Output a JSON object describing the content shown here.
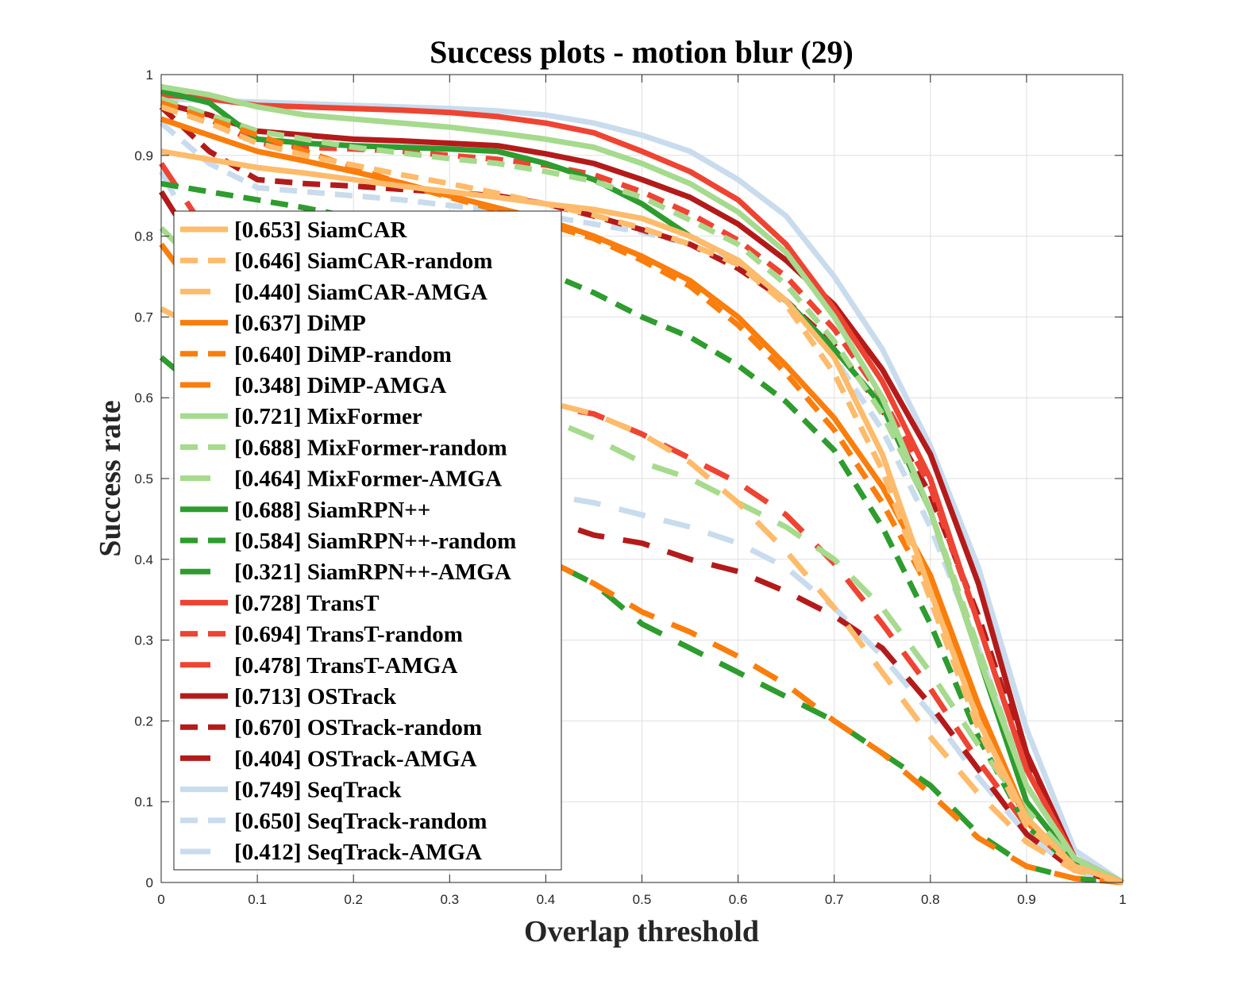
{
  "chart_data": {
    "type": "line",
    "title": "Success plots - motion blur (29)",
    "xlabel": "Overlap threshold",
    "ylabel": "Success rate",
    "xlim": [
      0,
      1
    ],
    "ylim": [
      0,
      1
    ],
    "grid": true,
    "legend_position": "left",
    "x_ticks": [
      "0",
      "0.1",
      "0.2",
      "0.3",
      "0.4",
      "0.5",
      "0.6",
      "0.7",
      "0.8",
      "0.9",
      "1"
    ],
    "y_ticks": [
      "0",
      "0.1",
      "0.2",
      "0.3",
      "0.4",
      "0.5",
      "0.6",
      "0.7",
      "0.8",
      "0.9",
      "1"
    ],
    "x": [
      0,
      0.05,
      0.1,
      0.15,
      0.2,
      0.25,
      0.3,
      0.35,
      0.4,
      0.45,
      0.5,
      0.55,
      0.6,
      0.65,
      0.7,
      0.75,
      0.8,
      0.85,
      0.9,
      0.95,
      1
    ],
    "series": [
      {
        "name": "[0.653] SiamCAR",
        "color": "#FDBB6B",
        "dash": "solid",
        "values": [
          0.905,
          0.895,
          0.885,
          0.878,
          0.87,
          0.862,
          0.855,
          0.848,
          0.84,
          0.833,
          0.822,
          0.8,
          0.77,
          0.72,
          0.65,
          0.53,
          0.36,
          0.2,
          0.08,
          0.02,
          0.0
        ]
      },
      {
        "name": "[0.646] SiamCAR-random",
        "color": "#FDBB6B",
        "dash": "dash",
        "values": [
          0.96,
          0.94,
          0.915,
          0.9,
          0.888,
          0.876,
          0.865,
          0.853,
          0.84,
          0.826,
          0.81,
          0.79,
          0.765,
          0.715,
          0.63,
          0.51,
          0.35,
          0.19,
          0.07,
          0.02,
          0.0
        ]
      },
      {
        "name": "[0.440] SiamCAR-AMGA",
        "color": "#FDBB6B",
        "dash": "longdash",
        "values": [
          0.71,
          0.68,
          0.66,
          0.65,
          0.64,
          0.625,
          0.615,
          0.605,
          0.595,
          0.58,
          0.555,
          0.52,
          0.47,
          0.41,
          0.34,
          0.26,
          0.18,
          0.11,
          0.05,
          0.015,
          0.0
        ]
      },
      {
        "name": "[0.637] DiMP",
        "color": "#F97E0D",
        "dash": "solid",
        "values": [
          0.945,
          0.925,
          0.905,
          0.893,
          0.88,
          0.866,
          0.85,
          0.835,
          0.82,
          0.8,
          0.775,
          0.745,
          0.7,
          0.64,
          0.575,
          0.49,
          0.38,
          0.22,
          0.08,
          0.02,
          0.0
        ]
      },
      {
        "name": "[0.640] DiMP-random",
        "color": "#F97E0D",
        "dash": "dash",
        "values": [
          0.965,
          0.945,
          0.925,
          0.905,
          0.885,
          0.865,
          0.848,
          0.832,
          0.815,
          0.797,
          0.77,
          0.738,
          0.69,
          0.63,
          0.56,
          0.47,
          0.36,
          0.21,
          0.075,
          0.02,
          0.0
        ]
      },
      {
        "name": "[0.348] DiMP-AMGA",
        "color": "#F97E0D",
        "dash": "longdash",
        "values": [
          0.79,
          0.71,
          0.65,
          0.6,
          0.55,
          0.5,
          0.46,
          0.43,
          0.4,
          0.37,
          0.335,
          0.31,
          0.28,
          0.245,
          0.2,
          0.16,
          0.11,
          0.055,
          0.02,
          0.005,
          0.0
        ]
      },
      {
        "name": "[0.721] MixFormer",
        "color": "#A6DA8E",
        "dash": "solid",
        "values": [
          0.985,
          0.975,
          0.96,
          0.95,
          0.945,
          0.94,
          0.935,
          0.928,
          0.92,
          0.91,
          0.89,
          0.865,
          0.83,
          0.78,
          0.7,
          0.6,
          0.46,
          0.28,
          0.12,
          0.03,
          0.0
        ]
      },
      {
        "name": "[0.688] MixFormer-random",
        "color": "#A6DA8E",
        "dash": "dash",
        "values": [
          0.97,
          0.95,
          0.93,
          0.92,
          0.91,
          0.903,
          0.896,
          0.89,
          0.88,
          0.868,
          0.848,
          0.82,
          0.79,
          0.74,
          0.67,
          0.58,
          0.46,
          0.29,
          0.12,
          0.03,
          0.0
        ]
      },
      {
        "name": "[0.464] MixFormer-AMGA",
        "color": "#A6DA8E",
        "dash": "longdash",
        "values": [
          0.81,
          0.75,
          0.71,
          0.68,
          0.65,
          0.63,
          0.61,
          0.59,
          0.575,
          0.55,
          0.52,
          0.5,
          0.47,
          0.44,
          0.4,
          0.34,
          0.26,
          0.17,
          0.09,
          0.025,
          0.0
        ]
      },
      {
        "name": "[0.688] SiamRPN++",
        "color": "#2E9C2E",
        "dash": "solid",
        "values": [
          0.98,
          0.965,
          0.92,
          0.915,
          0.912,
          0.91,
          0.908,
          0.905,
          0.89,
          0.87,
          0.84,
          0.8,
          0.77,
          0.72,
          0.66,
          0.59,
          0.46,
          0.28,
          0.1,
          0.025,
          0.0
        ]
      },
      {
        "name": "[0.584] SiamRPN++-random",
        "color": "#2E9C2E",
        "dash": "dash",
        "values": [
          0.865,
          0.855,
          0.845,
          0.835,
          0.823,
          0.81,
          0.795,
          0.777,
          0.755,
          0.73,
          0.7,
          0.675,
          0.64,
          0.595,
          0.535,
          0.44,
          0.32,
          0.18,
          0.07,
          0.02,
          0.0
        ]
      },
      {
        "name": "[0.321] SiamRPN++-AMGA",
        "color": "#2E9C2E",
        "dash": "longdash",
        "values": [
          0.65,
          0.6,
          0.55,
          0.51,
          0.48,
          0.455,
          0.43,
          0.415,
          0.4,
          0.37,
          0.32,
          0.29,
          0.26,
          0.23,
          0.2,
          0.16,
          0.12,
          0.06,
          0.02,
          0.005,
          0.0
        ]
      },
      {
        "name": "[0.728] TransT",
        "color": "#EE4433",
        "dash": "solid",
        "values": [
          0.975,
          0.97,
          0.962,
          0.96,
          0.958,
          0.956,
          0.953,
          0.948,
          0.94,
          0.928,
          0.905,
          0.88,
          0.845,
          0.79,
          0.71,
          0.62,
          0.5,
          0.32,
          0.14,
          0.03,
          0.0
        ]
      },
      {
        "name": "[0.694] TransT-random",
        "color": "#EE4433",
        "dash": "dash",
        "values": [
          0.965,
          0.945,
          0.915,
          0.91,
          0.908,
          0.905,
          0.9,
          0.895,
          0.888,
          0.876,
          0.855,
          0.828,
          0.795,
          0.75,
          0.685,
          0.6,
          0.49,
          0.32,
          0.14,
          0.03,
          0.0
        ]
      },
      {
        "name": "[0.478] TransT-AMGA",
        "color": "#EE4433",
        "dash": "longdash",
        "values": [
          0.89,
          0.8,
          0.74,
          0.7,
          0.67,
          0.64,
          0.61,
          0.59,
          0.59,
          0.58,
          0.555,
          0.525,
          0.495,
          0.455,
          0.395,
          0.32,
          0.24,
          0.15,
          0.07,
          0.02,
          0.0
        ]
      },
      {
        "name": "[0.713] OSTrack",
        "color": "#B31B1B",
        "dash": "solid",
        "values": [
          0.965,
          0.95,
          0.93,
          0.925,
          0.92,
          0.918,
          0.915,
          0.912,
          0.902,
          0.89,
          0.87,
          0.848,
          0.815,
          0.77,
          0.715,
          0.635,
          0.53,
          0.37,
          0.16,
          0.03,
          0.0
        ]
      },
      {
        "name": "[0.670] OSTrack-random",
        "color": "#B31B1B",
        "dash": "dash",
        "values": [
          0.96,
          0.905,
          0.87,
          0.865,
          0.862,
          0.858,
          0.854,
          0.85,
          0.84,
          0.825,
          0.808,
          0.79,
          0.76,
          0.72,
          0.665,
          0.585,
          0.48,
          0.33,
          0.15,
          0.03,
          0.0
        ]
      },
      {
        "name": "[0.404] OSTrack-AMGA",
        "color": "#B31B1B",
        "dash": "longdash",
        "values": [
          0.855,
          0.76,
          0.68,
          0.62,
          0.57,
          0.53,
          0.5,
          0.475,
          0.45,
          0.43,
          0.42,
          0.4,
          0.385,
          0.36,
          0.33,
          0.29,
          0.22,
          0.14,
          0.06,
          0.015,
          0.0
        ]
      },
      {
        "name": "[0.749] SeqTrack",
        "color": "#C9DCEE",
        "dash": "solid",
        "values": [
          0.97,
          0.968,
          0.966,
          0.964,
          0.962,
          0.96,
          0.958,
          0.955,
          0.95,
          0.94,
          0.925,
          0.905,
          0.87,
          0.825,
          0.75,
          0.66,
          0.54,
          0.39,
          0.19,
          0.04,
          0.0
        ]
      },
      {
        "name": "[0.650] SeqTrack-random",
        "color": "#C9DCEE",
        "dash": "dash",
        "values": [
          0.94,
          0.89,
          0.86,
          0.855,
          0.85,
          0.845,
          0.838,
          0.832,
          0.825,
          0.815,
          0.805,
          0.79,
          0.765,
          0.72,
          0.65,
          0.56,
          0.44,
          0.29,
          0.12,
          0.03,
          0.0
        ]
      },
      {
        "name": "[0.412] SeqTrack-AMGA",
        "color": "#C9DCEE",
        "dash": "longdash",
        "values": [
          0.88,
          0.77,
          0.69,
          0.63,
          0.58,
          0.54,
          0.51,
          0.49,
          0.48,
          0.47,
          0.455,
          0.44,
          0.42,
          0.39,
          0.34,
          0.28,
          0.21,
          0.13,
          0.06,
          0.015,
          0.0
        ]
      }
    ]
  }
}
